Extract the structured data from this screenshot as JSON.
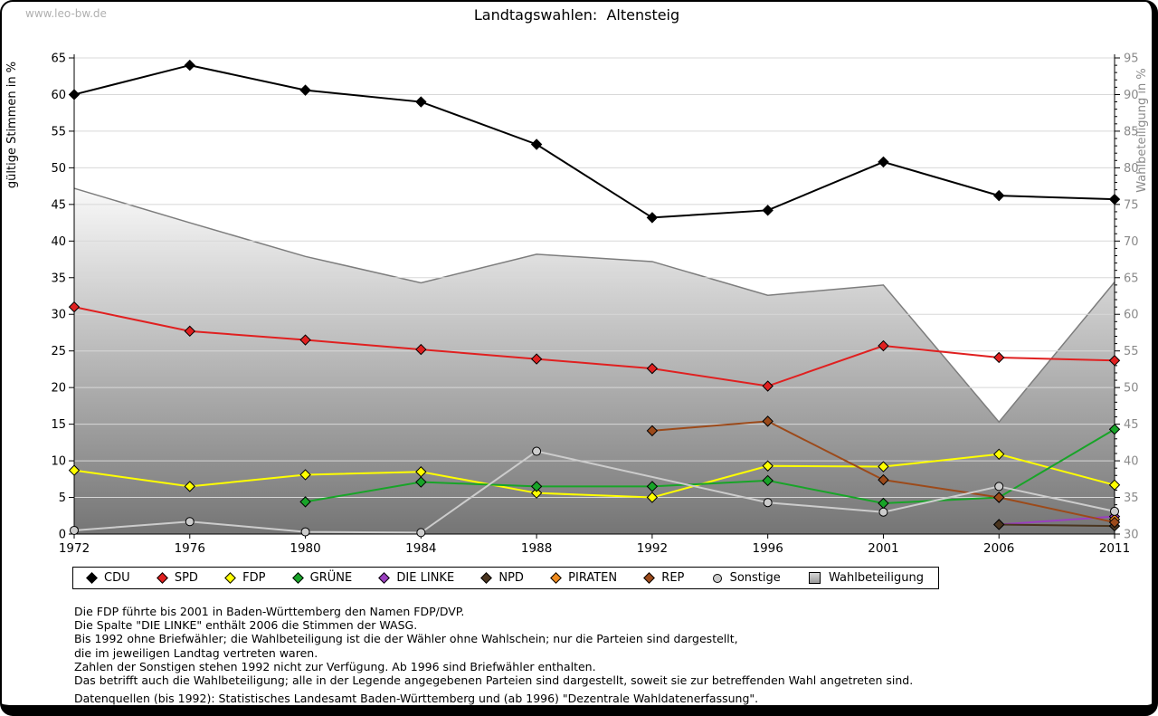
{
  "watermark": "www.leo-bw.de",
  "title": "Landtagswahlen:  Altensteig",
  "chart_data": {
    "type": "line",
    "title": "Landtagswahlen: Altensteig",
    "x": [
      1972,
      1976,
      1980,
      1984,
      1988,
      1992,
      1996,
      2001,
      2006,
      2011
    ],
    "ylabel_left": "gültige Stimmen in %",
    "ylabel_right": "Wahlbeteiligung in %",
    "ylim_left": [
      0,
      65
    ],
    "ylim_right": [
      30,
      95
    ],
    "grid": true,
    "legend_position": "bottom",
    "series": [
      {
        "name": "CDU",
        "color": "#000000",
        "marker": "diamond",
        "axis": "left",
        "kind": "line",
        "values": [
          60.0,
          64.0,
          60.6,
          59.0,
          53.2,
          43.2,
          44.2,
          50.8,
          46.2,
          45.7
        ]
      },
      {
        "name": "SPD",
        "color": "#e02020",
        "marker": "diamond",
        "axis": "left",
        "kind": "line",
        "values": [
          31.0,
          27.7,
          26.5,
          25.2,
          23.9,
          22.6,
          20.2,
          25.7,
          24.1,
          23.7
        ]
      },
      {
        "name": "FDP",
        "color": "#ffff00",
        "marker": "diamond",
        "axis": "left",
        "kind": "line",
        "values": [
          8.7,
          6.5,
          8.1,
          8.5,
          5.6,
          5.0,
          9.3,
          9.2,
          10.9,
          6.7
        ]
      },
      {
        "name": "GRÜNE",
        "color": "#18a428",
        "marker": "diamond",
        "axis": "left",
        "kind": "line",
        "values": [
          null,
          null,
          4.4,
          7.1,
          6.5,
          6.5,
          7.3,
          4.2,
          5.0,
          14.3
        ]
      },
      {
        "name": "DIE LINKE",
        "color": "#9a3fbf",
        "marker": "diamond",
        "axis": "left",
        "kind": "line",
        "values": [
          null,
          null,
          null,
          null,
          null,
          null,
          null,
          null,
          1.3,
          2.4
        ]
      },
      {
        "name": "NPD",
        "color": "#4a351f",
        "marker": "diamond",
        "axis": "left",
        "kind": "line",
        "values": [
          null,
          null,
          null,
          null,
          null,
          null,
          null,
          null,
          1.3,
          1.1
        ]
      },
      {
        "name": "PIRATEN",
        "color": "#ef8a1d",
        "marker": "diamond",
        "axis": "left",
        "kind": "line",
        "values": [
          null,
          null,
          null,
          null,
          null,
          null,
          null,
          null,
          null,
          2.0
        ]
      },
      {
        "name": "REP",
        "color": "#9c4a1a",
        "marker": "diamond",
        "axis": "left",
        "kind": "line",
        "values": [
          null,
          null,
          null,
          null,
          null,
          14.1,
          15.4,
          7.4,
          5.0,
          1.6
        ]
      },
      {
        "name": "Sonstige",
        "color": "#cccccc",
        "marker": "circle",
        "axis": "left",
        "kind": "line",
        "values": [
          0.5,
          1.7,
          0.3,
          0.2,
          11.3,
          null,
          4.3,
          3.0,
          6.5,
          3.1
        ]
      },
      {
        "name": "Wahlbeteiligung",
        "color": "#7d7d7d",
        "marker": "square",
        "axis": "right",
        "kind": "area",
        "values": [
          77.2,
          72.5,
          67.9,
          64.3,
          68.2,
          67.2,
          62.6,
          64.0,
          45.3,
          64.4
        ]
      }
    ]
  },
  "footnotes": [
    "Die FDP führte bis 2001 in Baden-Württemberg den Namen FDP/DVP.",
    "Die Spalte \"DIE LINKE\" enthält 2006 die Stimmen der WASG.",
    "Bis 1992 ohne Briefwähler; die Wahlbeteiligung ist die der Wähler ohne Wahlschein; nur die Parteien sind dargestellt,",
    "die im jeweiligen Landtag vertreten waren.",
    "Zahlen der Sonstigen stehen 1992 nicht zur Verfügung. Ab 1996 sind Briefwähler enthalten.",
    "Das betrifft auch die Wahlbeteiligung; alle in der Legende angegebenen Parteien sind dargestellt, soweit sie zur betreffenden Wahl angetreten sind."
  ],
  "source_line": "Datenquellen (bis 1992): Statistisches Landesamt Baden-Württemberg und (ab 1996) \"Dezentrale Wahldatenerfassung\"."
}
